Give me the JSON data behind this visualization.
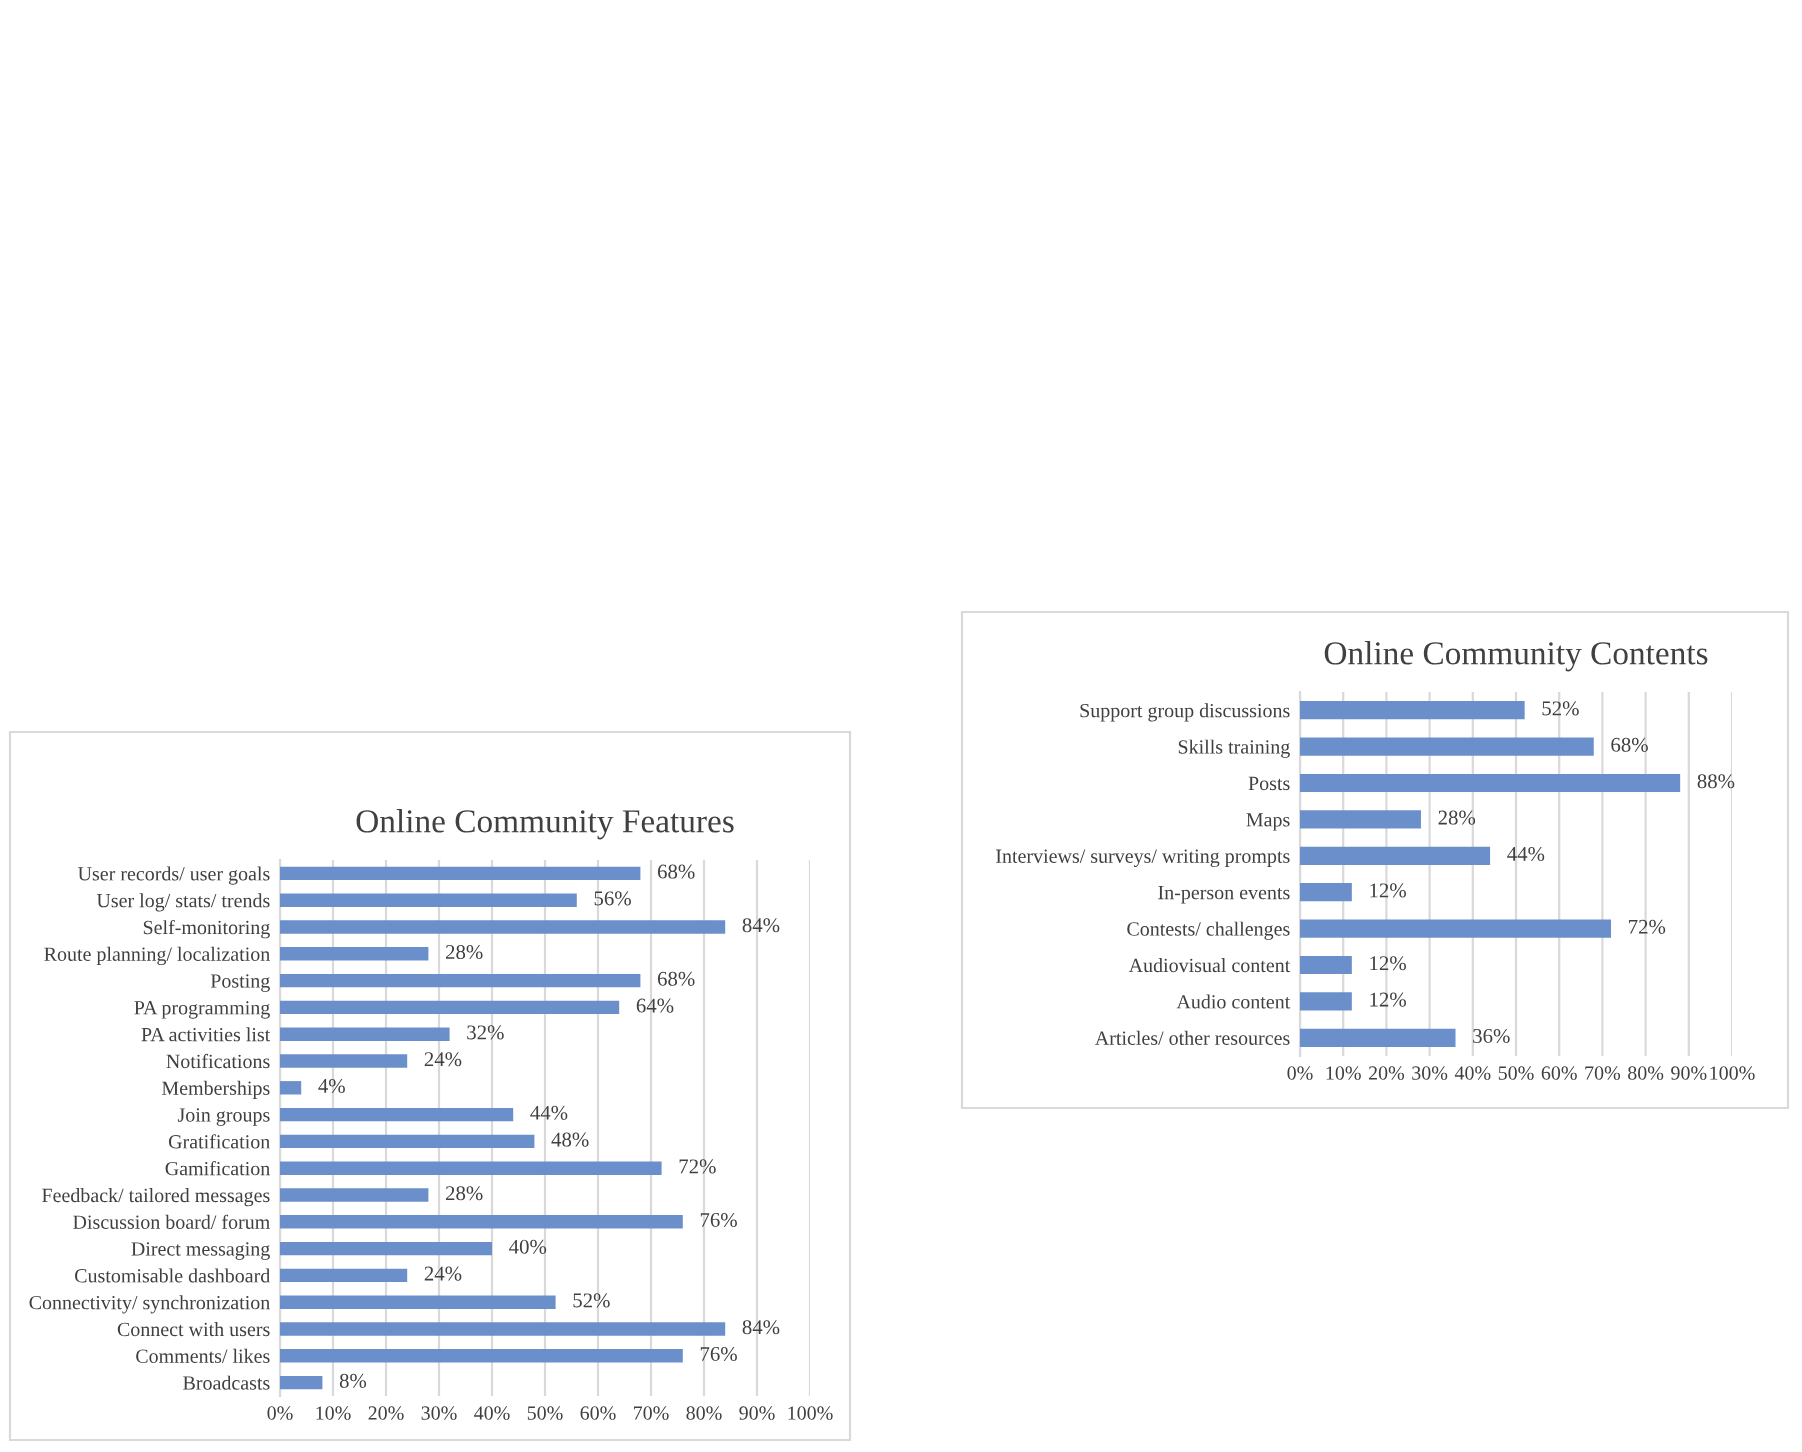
{
  "chart_data": [
    {
      "type": "bar",
      "orientation": "horizontal",
      "title": "Online Community Features",
      "categories": [
        "User records/ user goals",
        "User log/ stats/ trends",
        "Self-monitoring",
        "Route planning/ localization",
        "Posting",
        "PA programming",
        "PA activities list",
        "Notifications",
        "Memberships",
        "Join groups",
        "Gratification",
        "Gamification",
        "Feedback/ tailored messages",
        "Discussion board/ forum",
        "Direct messaging",
        "Customisable dashboard",
        "Connectivity/ synchronization",
        "Connect with users",
        "Comments/ likes",
        "Broadcasts"
      ],
      "values": [
        68,
        56,
        84,
        28,
        68,
        64,
        32,
        24,
        4,
        44,
        48,
        72,
        28,
        76,
        40,
        24,
        52,
        84,
        76,
        8
      ],
      "value_labels": [
        "68%",
        "56%",
        "84%",
        "28%",
        "68%",
        "64%",
        "32%",
        "24%",
        "4%",
        "44%",
        "48%",
        "72%",
        "28%",
        "76%",
        "40%",
        "24%",
        "52%",
        "84%",
        "76%",
        "8%"
      ],
      "color": "#6a8fcb",
      "xlim": [
        0,
        100
      ],
      "xticks": [
        {
          "value": 0,
          "label": "0%"
        },
        {
          "value": 10,
          "label": "10%"
        },
        {
          "value": 20,
          "label": "20%"
        },
        {
          "value": 30,
          "label": "30%"
        },
        {
          "value": 40,
          "label": "40%"
        },
        {
          "value": 50,
          "label": "50%"
        },
        {
          "value": 60,
          "label": "60%"
        },
        {
          "value": 70,
          "label": "70%"
        },
        {
          "value": 80,
          "label": "80%"
        },
        {
          "value": 90,
          "label": "90%"
        },
        {
          "value": 100,
          "label": "100%"
        }
      ],
      "grid": "x"
    },
    {
      "type": "bar",
      "orientation": "horizontal",
      "title": "Online Community Contents",
      "categories": [
        "Support group discussions",
        "Skills training",
        "Posts",
        "Maps",
        "Interviews/ surveys/ writing prompts",
        "In-person events",
        "Contests/ challenges",
        "Audiovisual content",
        "Audio content",
        "Articles/ other resources"
      ],
      "values": [
        52,
        68,
        88,
        28,
        44,
        12,
        72,
        12,
        12,
        36
      ],
      "value_labels": [
        "52%",
        "68%",
        "88%",
        "28%",
        "44%",
        "12%",
        "72%",
        "12%",
        "12%",
        "36%"
      ],
      "color": "#6a8fcb",
      "xlim": [
        0,
        100
      ],
      "xticks": [
        {
          "value": 0,
          "label": "0%"
        },
        {
          "value": 10,
          "label": "10%"
        },
        {
          "value": 20,
          "label": "20%"
        },
        {
          "value": 30,
          "label": "30%"
        },
        {
          "value": 40,
          "label": "40%"
        },
        {
          "value": 50,
          "label": "50%"
        },
        {
          "value": 60,
          "label": "60%"
        },
        {
          "value": 70,
          "label": "70%"
        },
        {
          "value": 80,
          "label": "80%"
        },
        {
          "value": 90,
          "label": "90%"
        },
        {
          "value": 100,
          "label": "100%"
        }
      ],
      "grid": "x"
    }
  ]
}
